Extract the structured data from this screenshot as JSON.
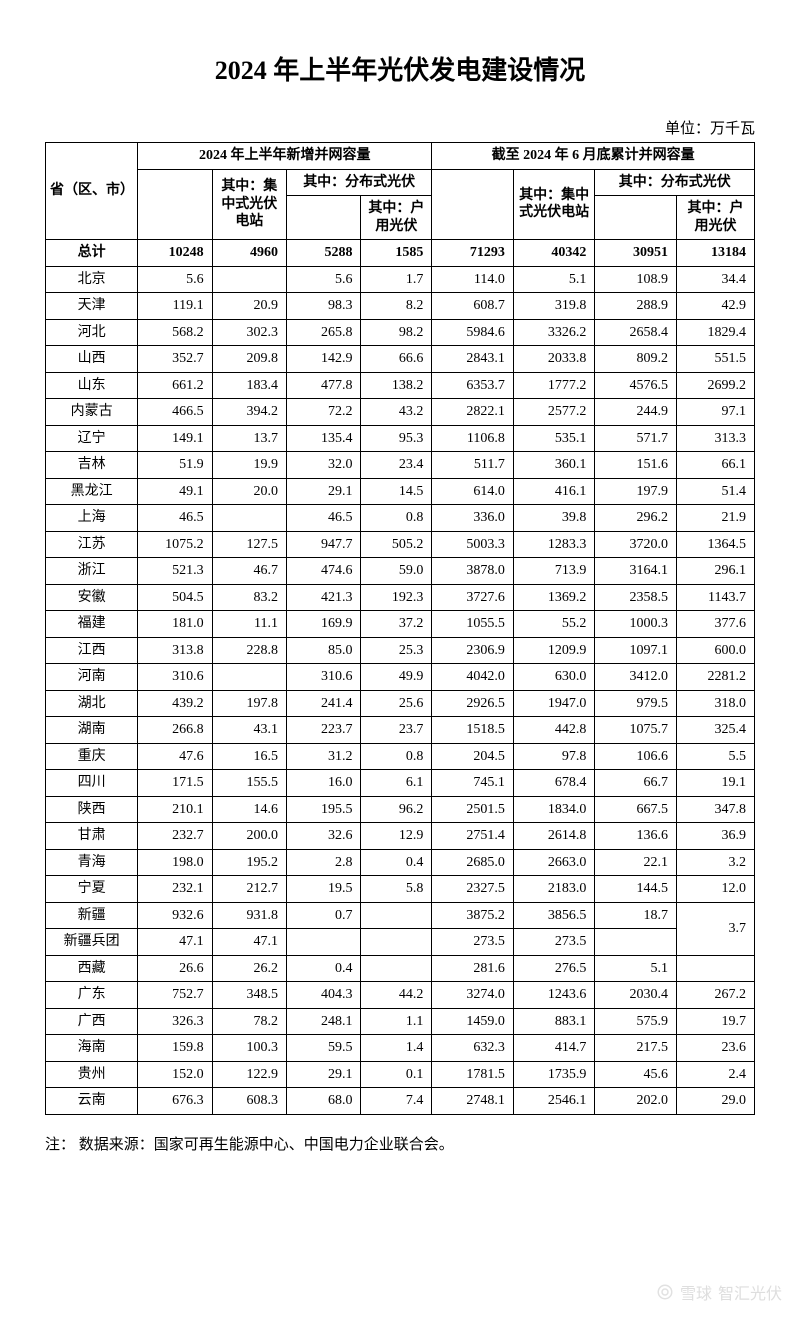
{
  "title": "2024 年上半年光伏发电建设情况",
  "unit_label": "单位：万千瓦",
  "header": {
    "province": "省（区、市）",
    "group_new": "2024 年上半年新增并网容量",
    "group_cum": "截至 2024 年 6 月底累计并网容量",
    "centralized": "其中：集中式光伏电站",
    "distributed": "其中：分布式光伏",
    "household": "其中：户用光伏"
  },
  "total_label": "总计",
  "totals": [
    "10248",
    "4960",
    "5288",
    "1585",
    "71293",
    "40342",
    "30951",
    "13184"
  ],
  "rows": [
    {
      "p": "北京",
      "v": [
        "5.6",
        "",
        "5.6",
        "1.7",
        "114.0",
        "5.1",
        "108.9",
        "34.4"
      ]
    },
    {
      "p": "天津",
      "v": [
        "119.1",
        "20.9",
        "98.3",
        "8.2",
        "608.7",
        "319.8",
        "288.9",
        "42.9"
      ]
    },
    {
      "p": "河北",
      "v": [
        "568.2",
        "302.3",
        "265.8",
        "98.2",
        "5984.6",
        "3326.2",
        "2658.4",
        "1829.4"
      ]
    },
    {
      "p": "山西",
      "v": [
        "352.7",
        "209.8",
        "142.9",
        "66.6",
        "2843.1",
        "2033.8",
        "809.2",
        "551.5"
      ]
    },
    {
      "p": "山东",
      "v": [
        "661.2",
        "183.4",
        "477.8",
        "138.2",
        "6353.7",
        "1777.2",
        "4576.5",
        "2699.2"
      ]
    },
    {
      "p": "内蒙古",
      "v": [
        "466.5",
        "394.2",
        "72.2",
        "43.2",
        "2822.1",
        "2577.2",
        "244.9",
        "97.1"
      ]
    },
    {
      "p": "辽宁",
      "v": [
        "149.1",
        "13.7",
        "135.4",
        "95.3",
        "1106.8",
        "535.1",
        "571.7",
        "313.3"
      ]
    },
    {
      "p": "吉林",
      "v": [
        "51.9",
        "19.9",
        "32.0",
        "23.4",
        "511.7",
        "360.1",
        "151.6",
        "66.1"
      ]
    },
    {
      "p": "黑龙江",
      "v": [
        "49.1",
        "20.0",
        "29.1",
        "14.5",
        "614.0",
        "416.1",
        "197.9",
        "51.4"
      ]
    },
    {
      "p": "上海",
      "v": [
        "46.5",
        "",
        "46.5",
        "0.8",
        "336.0",
        "39.8",
        "296.2",
        "21.9"
      ]
    },
    {
      "p": "江苏",
      "v": [
        "1075.2",
        "127.5",
        "947.7",
        "505.2",
        "5003.3",
        "1283.3",
        "3720.0",
        "1364.5"
      ]
    },
    {
      "p": "浙江",
      "v": [
        "521.3",
        "46.7",
        "474.6",
        "59.0",
        "3878.0",
        "713.9",
        "3164.1",
        "296.1"
      ]
    },
    {
      "p": "安徽",
      "v": [
        "504.5",
        "83.2",
        "421.3",
        "192.3",
        "3727.6",
        "1369.2",
        "2358.5",
        "1143.7"
      ]
    },
    {
      "p": "福建",
      "v": [
        "181.0",
        "11.1",
        "169.9",
        "37.2",
        "1055.5",
        "55.2",
        "1000.3",
        "377.6"
      ]
    },
    {
      "p": "江西",
      "v": [
        "313.8",
        "228.8",
        "85.0",
        "25.3",
        "2306.9",
        "1209.9",
        "1097.1",
        "600.0"
      ]
    },
    {
      "p": "河南",
      "v": [
        "310.6",
        "",
        "310.6",
        "49.9",
        "4042.0",
        "630.0",
        "3412.0",
        "2281.2"
      ]
    },
    {
      "p": "湖北",
      "v": [
        "439.2",
        "197.8",
        "241.4",
        "25.6",
        "2926.5",
        "1947.0",
        "979.5",
        "318.0"
      ]
    },
    {
      "p": "湖南",
      "v": [
        "266.8",
        "43.1",
        "223.7",
        "23.7",
        "1518.5",
        "442.8",
        "1075.7",
        "325.4"
      ]
    },
    {
      "p": "重庆",
      "v": [
        "47.6",
        "16.5",
        "31.2",
        "0.8",
        "204.5",
        "97.8",
        "106.6",
        "5.5"
      ]
    },
    {
      "p": "四川",
      "v": [
        "171.5",
        "155.5",
        "16.0",
        "6.1",
        "745.1",
        "678.4",
        "66.7",
        "19.1"
      ]
    },
    {
      "p": "陕西",
      "v": [
        "210.1",
        "14.6",
        "195.5",
        "96.2",
        "2501.5",
        "1834.0",
        "667.5",
        "347.8"
      ]
    },
    {
      "p": "甘肃",
      "v": [
        "232.7",
        "200.0",
        "32.6",
        "12.9",
        "2751.4",
        "2614.8",
        "136.6",
        "36.9"
      ]
    },
    {
      "p": "青海",
      "v": [
        "198.0",
        "195.2",
        "2.8",
        "0.4",
        "2685.0",
        "2663.0",
        "22.1",
        "3.2"
      ]
    },
    {
      "p": "宁夏",
      "v": [
        "232.1",
        "212.7",
        "19.5",
        "5.8",
        "2327.5",
        "2183.0",
        "144.5",
        "12.0"
      ]
    },
    {
      "p": "新疆",
      "v": [
        "932.6",
        "931.8",
        "0.7",
        "",
        "3875.2",
        "3856.5",
        "18.7",
        ""
      ],
      "merge_last": {
        "value": "3.7",
        "rowspan": 2
      }
    },
    {
      "p": "新疆兵团",
      "v": [
        "47.1",
        "47.1",
        "",
        "",
        "273.5",
        "273.5",
        "",
        ""
      ],
      "skip_last": true
    },
    {
      "p": "西藏",
      "v": [
        "26.6",
        "26.2",
        "0.4",
        "",
        "281.6",
        "276.5",
        "5.1",
        ""
      ]
    },
    {
      "p": "广东",
      "v": [
        "752.7",
        "348.5",
        "404.3",
        "44.2",
        "3274.0",
        "1243.6",
        "2030.4",
        "267.2"
      ]
    },
    {
      "p": "广西",
      "v": [
        "326.3",
        "78.2",
        "248.1",
        "1.1",
        "1459.0",
        "883.1",
        "575.9",
        "19.7"
      ]
    },
    {
      "p": "海南",
      "v": [
        "159.8",
        "100.3",
        "59.5",
        "1.4",
        "632.3",
        "414.7",
        "217.5",
        "23.6"
      ]
    },
    {
      "p": "贵州",
      "v": [
        "152.0",
        "122.9",
        "29.1",
        "0.1",
        "1781.5",
        "1735.9",
        "45.6",
        "2.4"
      ]
    },
    {
      "p": "云南",
      "v": [
        "676.3",
        "608.3",
        "68.0",
        "7.4",
        "2748.1",
        "2546.1",
        "202.0",
        "29.0"
      ]
    }
  ],
  "footnote": "注：  数据来源：国家可再生能源中心、中国电力企业联合会。",
  "watermark": {
    "left": "雪球",
    "right": "智汇光伏"
  },
  "style": {
    "col_widths_pct": [
      13,
      10.5,
      10.5,
      10.5,
      10,
      11.5,
      11.5,
      11.5,
      11
    ],
    "border_color": "#000000",
    "background": "#ffffff",
    "title_fontsize": 26,
    "body_fontsize": 14
  }
}
